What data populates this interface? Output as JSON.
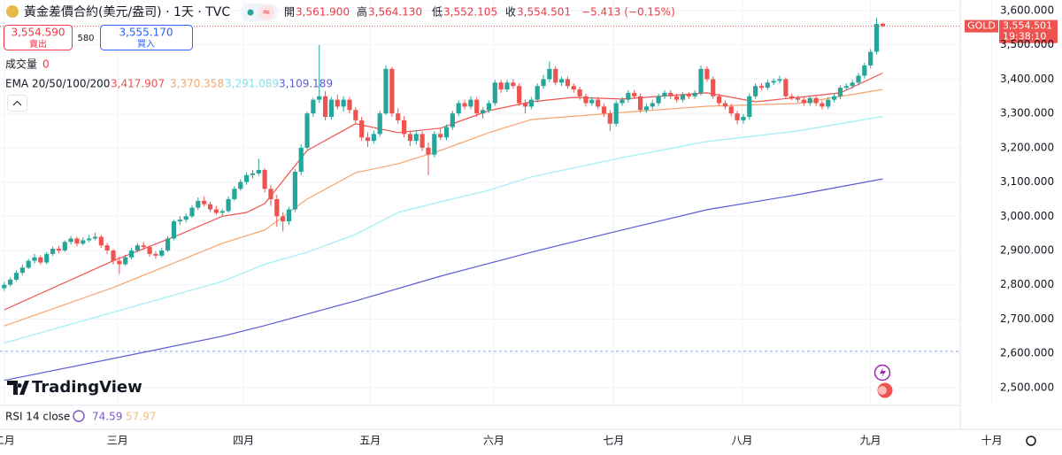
{
  "header": {
    "title": "黃金差價合約(美元/盎司) · 1天 · TVC",
    "open_label": "開",
    "open": "3,561.900",
    "high_label": "高",
    "high": "3,564.130",
    "low_label": "低",
    "low": "3,552.105",
    "close_label": "收",
    "close": "3,554.501",
    "change": "−5.413 (−0.15%)"
  },
  "trade": {
    "sell_price": "3,554.590",
    "sell_label": "賣出",
    "spread": "580",
    "buy_price": "3,555.170",
    "buy_label": "買入"
  },
  "volume": {
    "label": "成交量",
    "value": "0"
  },
  "ema_legend": {
    "label": "EMA 20/50/100/200",
    "values": [
      "3,417.907",
      "3,370.358",
      "3,291.089",
      "3,109.189"
    ]
  },
  "rsi": {
    "label": "RSI 14 close",
    "values": [
      "74.59",
      "57.97"
    ],
    "colors": [
      "#7e57c2",
      "#f0c27b"
    ]
  },
  "price_tag": {
    "symbol": "GOLD",
    "price": "3,554.501",
    "countdown": "19:38:10"
  },
  "logo": "TradingView",
  "chart_data": {
    "type": "candlestick",
    "up_color": "#26a69a",
    "down_color": "#ef5350",
    "grid": true,
    "xlim": [
      -0.7,
      157.8
    ],
    "ylim": [
      2448,
      3631
    ],
    "yticks": [
      {
        "value": 2500,
        "label": "2,500.000"
      },
      {
        "value": 2600,
        "label": "2,600.000"
      },
      {
        "value": 2700,
        "label": "2,700.000"
      },
      {
        "value": 2800,
        "label": "2,800.000"
      },
      {
        "value": 2900,
        "label": "2,900.000"
      },
      {
        "value": 3000,
        "label": "3,000.000"
      },
      {
        "value": 3100,
        "label": "3,100.000"
      },
      {
        "value": 3200,
        "label": "3,200.000"
      },
      {
        "value": 3300,
        "label": "3,300.000"
      },
      {
        "value": 3400,
        "label": "3,400.000"
      },
      {
        "value": 3500,
        "label": "3,500.000"
      },
      {
        "value": 3600,
        "label": "3,600.000"
      }
    ],
    "xticks": [
      {
        "value": 0,
        "label": "二月"
      },
      {
        "value": 18.7,
        "label": "三月"
      },
      {
        "value": 39.5,
        "label": "四月"
      },
      {
        "value": 60.4,
        "label": "五月"
      },
      {
        "value": 80.8,
        "label": "六月"
      },
      {
        "value": 100.6,
        "label": "七月"
      },
      {
        "value": 121.8,
        "label": "八月"
      },
      {
        "value": 143,
        "label": "九月"
      },
      {
        "value": 163,
        "label": "十月"
      }
    ],
    "reference_line": {
      "value": 2606,
      "color": "#8fa8d8"
    },
    "candles": [
      [
        2790,
        2808,
        2782,
        2800
      ],
      [
        2800,
        2822,
        2795,
        2815
      ],
      [
        2815,
        2842,
        2810,
        2835
      ],
      [
        2835,
        2858,
        2828,
        2850
      ],
      [
        2850,
        2876,
        2845,
        2870
      ],
      [
        2870,
        2890,
        2862,
        2880
      ],
      [
        2880,
        2886,
        2858,
        2865
      ],
      [
        2865,
        2896,
        2860,
        2890
      ],
      [
        2890,
        2912,
        2884,
        2905
      ],
      [
        2905,
        2914,
        2892,
        2900
      ],
      [
        2900,
        2930,
        2895,
        2925
      ],
      [
        2925,
        2942,
        2918,
        2935
      ],
      [
        2935,
        2940,
        2912,
        2920
      ],
      [
        2920,
        2938,
        2915,
        2930
      ],
      [
        2930,
        2945,
        2924,
        2935
      ],
      [
        2935,
        2952,
        2930,
        2940
      ],
      [
        2940,
        2946,
        2908,
        2915
      ],
      [
        2915,
        2922,
        2890,
        2900
      ],
      [
        2900,
        2905,
        2860,
        2870
      ],
      [
        2870,
        2882,
        2832,
        2860
      ],
      [
        2860,
        2888,
        2855,
        2880
      ],
      [
        2880,
        2908,
        2874,
        2900
      ],
      [
        2900,
        2922,
        2895,
        2915
      ],
      [
        2915,
        2925,
        2902,
        2910
      ],
      [
        2910,
        2915,
        2882,
        2890
      ],
      [
        2890,
        2898,
        2876,
        2885
      ],
      [
        2885,
        2908,
        2880,
        2900
      ],
      [
        2900,
        2942,
        2896,
        2935
      ],
      [
        2935,
        2990,
        2930,
        2985
      ],
      [
        2985,
        3000,
        2975,
        2990
      ],
      [
        2990,
        3008,
        2982,
        3000
      ],
      [
        3000,
        3032,
        2995,
        3025
      ],
      [
        3025,
        3055,
        3018,
        3045
      ],
      [
        3045,
        3058,
        3028,
        3035
      ],
      [
        3035,
        3042,
        3012,
        3020
      ],
      [
        3020,
        3030,
        3004,
        3010
      ],
      [
        3010,
        3022,
        3000,
        3015
      ],
      [
        3015,
        3058,
        3010,
        3050
      ],
      [
        3050,
        3088,
        3045,
        3080
      ],
      [
        3080,
        3108,
        3075,
        3100
      ],
      [
        3100,
        3128,
        3092,
        3120
      ],
      [
        3120,
        3135,
        3110,
        3125
      ],
      [
        3125,
        3168,
        3118,
        3135
      ],
      [
        3135,
        3140,
        3070,
        3080
      ],
      [
        3080,
        3092,
        3030,
        3050
      ],
      [
        3050,
        3062,
        2970,
        3000
      ],
      [
        3000,
        3012,
        2956,
        2985
      ],
      [
        2985,
        3028,
        2975,
        3020
      ],
      [
        3020,
        3138,
        3012,
        3130
      ],
      [
        3130,
        3210,
        3120,
        3200
      ],
      [
        3200,
        3305,
        3195,
        3300
      ],
      [
        3300,
        3345,
        3290,
        3340
      ],
      [
        3340,
        3500,
        3330,
        3350
      ],
      [
        3350,
        3365,
        3280,
        3290
      ],
      [
        3290,
        3348,
        3282,
        3340
      ],
      [
        3340,
        3355,
        3312,
        3320
      ],
      [
        3320,
        3350,
        3305,
        3340
      ],
      [
        3340,
        3348,
        3300,
        3310
      ],
      [
        3310,
        3318,
        3270,
        3280
      ],
      [
        3280,
        3290,
        3220,
        3230
      ],
      [
        3230,
        3245,
        3202,
        3220
      ],
      [
        3220,
        3250,
        3212,
        3240
      ],
      [
        3240,
        3308,
        3232,
        3300
      ],
      [
        3300,
        3440,
        3295,
        3430
      ],
      [
        3430,
        3435,
        3290,
        3300
      ],
      [
        3300,
        3315,
        3270,
        3280
      ],
      [
        3280,
        3292,
        3230,
        3240
      ],
      [
        3240,
        3250,
        3205,
        3220
      ],
      [
        3220,
        3252,
        3210,
        3240
      ],
      [
        3240,
        3248,
        3190,
        3200
      ],
      [
        3200,
        3215,
        3120,
        3180
      ],
      [
        3180,
        3248,
        3172,
        3240
      ],
      [
        3240,
        3255,
        3222,
        3230
      ],
      [
        3230,
        3268,
        3222,
        3260
      ],
      [
        3260,
        3308,
        3252,
        3300
      ],
      [
        3300,
        3338,
        3292,
        3330
      ],
      [
        3330,
        3340,
        3312,
        3320
      ],
      [
        3320,
        3350,
        3312,
        3340
      ],
      [
        3340,
        3348,
        3290,
        3300
      ],
      [
        3300,
        3318,
        3285,
        3310
      ],
      [
        3310,
        3338,
        3302,
        3330
      ],
      [
        3330,
        3398,
        3322,
        3390
      ],
      [
        3390,
        3398,
        3360,
        3370
      ],
      [
        3370,
        3398,
        3362,
        3390
      ],
      [
        3390,
        3400,
        3372,
        3380
      ],
      [
        3380,
        3388,
        3322,
        3330
      ],
      [
        3330,
        3340,
        3300,
        3320
      ],
      [
        3320,
        3348,
        3312,
        3340
      ],
      [
        3340,
        3388,
        3332,
        3380
      ],
      [
        3380,
        3412,
        3372,
        3400
      ],
      [
        3400,
        3452,
        3392,
        3430
      ],
      [
        3430,
        3438,
        3382,
        3390
      ],
      [
        3390,
        3408,
        3380,
        3400
      ],
      [
        3400,
        3408,
        3372,
        3380
      ],
      [
        3380,
        3388,
        3360,
        3370
      ],
      [
        3370,
        3378,
        3340,
        3350
      ],
      [
        3350,
        3358,
        3320,
        3330
      ],
      [
        3330,
        3348,
        3322,
        3340
      ],
      [
        3340,
        3348,
        3312,
        3320
      ],
      [
        3320,
        3328,
        3290,
        3300
      ],
      [
        3300,
        3310,
        3248,
        3270
      ],
      [
        3270,
        3338,
        3262,
        3330
      ],
      [
        3330,
        3348,
        3322,
        3340
      ],
      [
        3340,
        3368,
        3332,
        3360
      ],
      [
        3360,
        3368,
        3342,
        3350
      ],
      [
        3350,
        3358,
        3302,
        3310
      ],
      [
        3310,
        3328,
        3302,
        3320
      ],
      [
        3320,
        3338,
        3312,
        3330
      ],
      [
        3330,
        3358,
        3322,
        3350
      ],
      [
        3350,
        3368,
        3342,
        3360
      ],
      [
        3360,
        3368,
        3342,
        3350
      ],
      [
        3350,
        3358,
        3332,
        3340
      ],
      [
        3340,
        3362,
        3332,
        3355
      ],
      [
        3355,
        3362,
        3342,
        3350
      ],
      [
        3350,
        3368,
        3342,
        3360
      ],
      [
        3360,
        3440,
        3352,
        3430
      ],
      [
        3430,
        3438,
        3392,
        3400
      ],
      [
        3400,
        3408,
        3342,
        3350
      ],
      [
        3350,
        3358,
        3322,
        3330
      ],
      [
        3330,
        3338,
        3312,
        3320
      ],
      [
        3320,
        3328,
        3292,
        3300
      ],
      [
        3300,
        3308,
        3268,
        3280
      ],
      [
        3280,
        3298,
        3270,
        3290
      ],
      [
        3290,
        3358,
        3282,
        3350
      ],
      [
        3350,
        3388,
        3342,
        3380
      ],
      [
        3380,
        3388,
        3368,
        3375
      ],
      [
        3375,
        3398,
        3368,
        3390
      ],
      [
        3390,
        3402,
        3382,
        3395
      ],
      [
        3395,
        3410,
        3388,
        3400
      ],
      [
        3400,
        3405,
        3342,
        3350
      ],
      [
        3350,
        3358,
        3338,
        3345
      ],
      [
        3345,
        3352,
        3332,
        3340
      ],
      [
        3340,
        3348,
        3322,
        3330
      ],
      [
        3330,
        3352,
        3322,
        3345
      ],
      [
        3345,
        3350,
        3322,
        3330
      ],
      [
        3330,
        3338,
        3312,
        3320
      ],
      [
        3320,
        3348,
        3312,
        3340
      ],
      [
        3340,
        3358,
        3332,
        3350
      ],
      [
        3350,
        3382,
        3342,
        3375
      ],
      [
        3375,
        3388,
        3368,
        3380
      ],
      [
        3380,
        3398,
        3372,
        3390
      ],
      [
        3390,
        3418,
        3382,
        3410
      ],
      [
        3410,
        3448,
        3402,
        3440
      ],
      [
        3440,
        3488,
        3432,
        3480
      ],
      [
        3480,
        3578,
        3472,
        3561
      ],
      [
        3561.9,
        3564.13,
        3552.105,
        3554.501
      ]
    ],
    "series": [
      {
        "color": "#ef5350",
        "x": [
          0,
          18,
          29,
          36,
          40,
          43,
          50,
          58,
          65,
          72,
          80,
          87,
          94,
          102,
          116,
          124,
          131,
          138,
          145
        ],
        "values": [
          2727,
          2870,
          2947,
          3000,
          3011,
          3037,
          3192,
          3270,
          3244,
          3257,
          3308,
          3334,
          3347,
          3342,
          3360,
          3334,
          3347,
          3360,
          3418
        ]
      },
      {
        "color": "#f7a46b",
        "x": [
          0,
          18,
          36,
          43,
          50,
          58,
          65,
          72,
          80,
          87,
          102,
          116,
          131,
          145
        ],
        "values": [
          2680,
          2792,
          2921,
          2960,
          3050,
          3127,
          3153,
          3192,
          3244,
          3282,
          3303,
          3321,
          3329,
          3370
        ]
      },
      {
        "color": "#9ff0f5",
        "x": [
          0,
          18,
          36,
          43,
          50,
          58,
          65,
          72,
          80,
          87,
          102,
          116,
          131,
          145
        ],
        "values": [
          2630,
          2720,
          2810,
          2860,
          2895,
          2947,
          3011,
          3042,
          3076,
          3115,
          3171,
          3218,
          3249,
          3291
        ]
      },
      {
        "color": "#5b5bd6",
        "x": [
          0,
          18,
          36,
          43,
          58,
          72,
          87,
          102,
          116,
          131,
          145
        ],
        "values": [
          2521,
          2585,
          2650,
          2681,
          2753,
          2825,
          2895,
          2960,
          3019,
          3063,
          3109
        ]
      }
    ]
  }
}
